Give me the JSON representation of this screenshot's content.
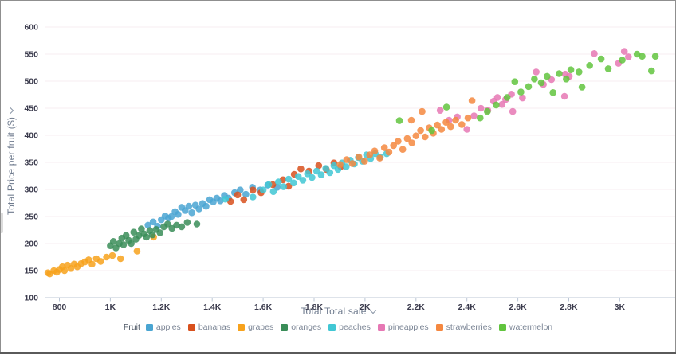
{
  "chart_data": {
    "type": "scatter",
    "title": "",
    "xlabel": "Total Total sale",
    "ylabel": "Total Price per fruit ($)",
    "legend_title": "Fruit",
    "legend_position": "bottom",
    "grid": true,
    "xlim": [
      700,
      3250
    ],
    "ylim": [
      100,
      620
    ],
    "y_ticks": [
      100,
      150,
      200,
      250,
      300,
      350,
      400,
      450,
      500,
      550,
      600
    ],
    "x_ticks": [
      {
        "v": 800,
        "label": "800"
      },
      {
        "v": 1000,
        "label": "1K"
      },
      {
        "v": 1200,
        "label": "1.2K"
      },
      {
        "v": 1400,
        "label": "1.4K"
      },
      {
        "v": 1600,
        "label": "1.6K"
      },
      {
        "v": 1800,
        "label": "1.8K"
      },
      {
        "v": 2000,
        "label": "2K"
      },
      {
        "v": 2200,
        "label": "2.2K"
      },
      {
        "v": 2400,
        "label": "2.4K"
      },
      {
        "v": 2600,
        "label": "2.6K"
      },
      {
        "v": 2800,
        "label": "2.8K"
      },
      {
        "v": 3000,
        "label": "3K"
      }
    ],
    "series": [
      {
        "name": "apples",
        "color": "#4aa5d2",
        "points": [
          [
            1148,
            234
          ],
          [
            1168,
            240
          ],
          [
            1185,
            232
          ],
          [
            1200,
            244
          ],
          [
            1215,
            251
          ],
          [
            1228,
            247
          ],
          [
            1240,
            250
          ],
          [
            1254,
            259
          ],
          [
            1266,
            254
          ],
          [
            1280,
            267
          ],
          [
            1294,
            261
          ],
          [
            1308,
            269
          ],
          [
            1320,
            257
          ],
          [
            1334,
            271
          ],
          [
            1348,
            264
          ],
          [
            1362,
            274
          ],
          [
            1376,
            269
          ],
          [
            1390,
            281
          ],
          [
            1404,
            277
          ],
          [
            1418,
            284
          ],
          [
            1432,
            279
          ],
          [
            1448,
            289
          ],
          [
            1464,
            284
          ],
          [
            1488,
            294
          ],
          [
            1510,
            299
          ],
          [
            1532,
            291
          ],
          [
            1558,
            304
          ],
          [
            1588,
            299
          ],
          [
            1618,
            308
          ],
          [
            1655,
            304
          ]
        ]
      },
      {
        "name": "bananas",
        "color": "#d8501d",
        "points": [
          [
            1472,
            278
          ],
          [
            1500,
            290
          ],
          [
            1524,
            281
          ],
          [
            1560,
            299
          ],
          [
            1592,
            294
          ],
          [
            1638,
            309
          ],
          [
            1678,
            318
          ],
          [
            1700,
            306
          ],
          [
            1722,
            328
          ],
          [
            1748,
            338
          ],
          [
            1780,
            334
          ],
          [
            1818,
            344
          ],
          [
            1848,
            337
          ],
          [
            1878,
            349
          ],
          [
            1905,
            342
          ]
        ]
      },
      {
        "name": "grapes",
        "color": "#f7a21c",
        "points": [
          [
            755,
            146
          ],
          [
            762,
            144
          ],
          [
            778,
            150
          ],
          [
            790,
            147
          ],
          [
            800,
            152
          ],
          [
            812,
            157
          ],
          [
            820,
            150
          ],
          [
            832,
            160
          ],
          [
            845,
            154
          ],
          [
            858,
            162
          ],
          [
            870,
            157
          ],
          [
            885,
            163
          ],
          [
            900,
            166
          ],
          [
            915,
            170
          ],
          [
            928,
            162
          ],
          [
            945,
            172
          ],
          [
            962,
            167
          ],
          [
            985,
            175
          ],
          [
            1008,
            178
          ],
          [
            1040,
            172
          ],
          [
            1105,
            186
          ],
          [
            1170,
            212
          ]
        ]
      },
      {
        "name": "oranges",
        "color": "#3a8d58",
        "points": [
          [
            1000,
            196
          ],
          [
            1012,
            204
          ],
          [
            1022,
            192
          ],
          [
            1035,
            200
          ],
          [
            1045,
            210
          ],
          [
            1052,
            198
          ],
          [
            1062,
            215
          ],
          [
            1072,
            206
          ],
          [
            1082,
            200
          ],
          [
            1092,
            221
          ],
          [
            1100,
            208
          ],
          [
            1112,
            215
          ],
          [
            1122,
            227
          ],
          [
            1132,
            218
          ],
          [
            1142,
            212
          ],
          [
            1155,
            224
          ],
          [
            1165,
            216
          ],
          [
            1180,
            226
          ],
          [
            1195,
            220
          ],
          [
            1210,
            231
          ],
          [
            1225,
            236
          ],
          [
            1242,
            228
          ],
          [
            1260,
            234
          ],
          [
            1280,
            231
          ],
          [
            1302,
            239
          ],
          [
            1340,
            236
          ]
        ]
      },
      {
        "name": "peaches",
        "color": "#41c7d4",
        "points": [
          [
            1452,
            282
          ],
          [
            1560,
            286
          ],
          [
            1600,
            299
          ],
          [
            1622,
            309
          ],
          [
            1640,
            296
          ],
          [
            1660,
            314
          ],
          [
            1680,
            305
          ],
          [
            1700,
            319
          ],
          [
            1720,
            312
          ],
          [
            1738,
            324
          ],
          [
            1756,
            317
          ],
          [
            1774,
            329
          ],
          [
            1792,
            322
          ],
          [
            1810,
            334
          ],
          [
            1828,
            327
          ],
          [
            1846,
            339
          ],
          [
            1862,
            331
          ],
          [
            1878,
            344
          ],
          [
            1894,
            337
          ],
          [
            1910,
            349
          ],
          [
            1926,
            342
          ],
          [
            1942,
            354
          ],
          [
            1958,
            347
          ],
          [
            1974,
            359
          ],
          [
            1990,
            352
          ],
          [
            2006,
            364
          ],
          [
            2022,
            357
          ],
          [
            2040,
            366
          ],
          [
            2060,
            360
          ],
          [
            2085,
            366
          ]
        ]
      },
      {
        "name": "pineapples",
        "color": "#e678b4",
        "points": [
          [
            2295,
            446
          ],
          [
            2330,
            428
          ],
          [
            2362,
            434
          ],
          [
            2400,
            411
          ],
          [
            2428,
            436
          ],
          [
            2455,
            450
          ],
          [
            2482,
            446
          ],
          [
            2505,
            463
          ],
          [
            2520,
            470
          ],
          [
            2538,
            457
          ],
          [
            2552,
            466
          ],
          [
            2580,
            444
          ],
          [
            2575,
            476
          ],
          [
            2618,
            469
          ],
          [
            2672,
            517
          ],
          [
            2700,
            494
          ],
          [
            2732,
            503
          ],
          [
            2786,
            513
          ],
          [
            2802,
            509
          ],
          [
            2783,
            472
          ],
          [
            2900,
            551
          ],
          [
            2995,
            533
          ],
          [
            3018,
            555
          ],
          [
            3034,
            545
          ]
        ]
      },
      {
        "name": "strawberries",
        "color": "#f58840",
        "points": [
          [
            1902,
            346
          ],
          [
            1928,
            355
          ],
          [
            1950,
            348
          ],
          [
            1976,
            360
          ],
          [
            1998,
            352
          ],
          [
            2018,
            364
          ],
          [
            2038,
            371
          ],
          [
            2058,
            358
          ],
          [
            2076,
            377
          ],
          [
            2094,
            369
          ],
          [
            2112,
            381
          ],
          [
            2130,
            389
          ],
          [
            2148,
            374
          ],
          [
            2182,
            428
          ],
          [
            2166,
            394
          ],
          [
            2184,
            386
          ],
          [
            2200,
            399
          ],
          [
            2218,
            409
          ],
          [
            2224,
            444
          ],
          [
            2236,
            397
          ],
          [
            2252,
            414
          ],
          [
            2268,
            404
          ],
          [
            2284,
            419
          ],
          [
            2300,
            411
          ],
          [
            2318,
            424
          ],
          [
            2336,
            416
          ],
          [
            2356,
            428
          ],
          [
            2380,
            420
          ],
          [
            2404,
            432
          ],
          [
            2420,
            464
          ]
        ]
      },
      {
        "name": "watermelon",
        "color": "#61c43e",
        "points": [
          [
            2135,
            427
          ],
          [
            2262,
            409
          ],
          [
            2320,
            452
          ],
          [
            2452,
            432
          ],
          [
            2480,
            444
          ],
          [
            2515,
            456
          ],
          [
            2558,
            470
          ],
          [
            2588,
            499
          ],
          [
            2612,
            480
          ],
          [
            2642,
            490
          ],
          [
            2665,
            504
          ],
          [
            2692,
            497
          ],
          [
            2715,
            509
          ],
          [
            2738,
            479
          ],
          [
            2762,
            514
          ],
          [
            2790,
            504
          ],
          [
            2808,
            521
          ],
          [
            2840,
            517
          ],
          [
            2852,
            489
          ],
          [
            2882,
            529
          ],
          [
            2927,
            541
          ],
          [
            2955,
            523
          ],
          [
            3010,
            539
          ],
          [
            3068,
            550
          ],
          [
            3088,
            546
          ],
          [
            3125,
            519
          ],
          [
            3140,
            546
          ]
        ]
      }
    ]
  },
  "style": {
    "gridline_color": "#f7edf0",
    "axis_line_color": "#bcc7d6",
    "tick_label_color": "#3c3c4e",
    "point_radius": 4.3,
    "point_opacity": 0.85
  }
}
